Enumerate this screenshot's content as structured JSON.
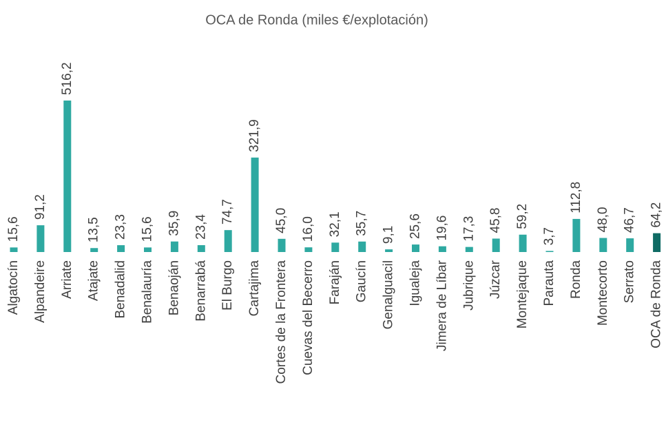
{
  "chart_data": {
    "type": "bar",
    "title": "OCA de Ronda (miles €/explotación)",
    "categories": [
      "Algatocín",
      "Alpandeire",
      "Arriate",
      "Atajate",
      "Benadalid",
      "Benalauría",
      "Benaoján",
      "Benarrabá",
      "El Burgo",
      "Cartajima",
      "Cortes de la Frontera",
      "Cuevas del Becerro",
      "Faraján",
      "Gaucín",
      "Genalguacil",
      "Igualeja",
      "Jimera de Líbar",
      "Jubrique",
      "Júzcar",
      "Montejaque",
      "Parauta",
      "Ronda",
      "Montecorto",
      "Serrato",
      "OCA de Ronda"
    ],
    "values": [
      15.6,
      91.2,
      516.2,
      13.5,
      23.3,
      15.6,
      35.9,
      23.4,
      74.7,
      321.9,
      45.0,
      16.0,
      32.1,
      35.7,
      9.1,
      25.6,
      19.6,
      17.3,
      45.8,
      59.2,
      3.7,
      112.8,
      48.0,
      46.7,
      64.2
    ],
    "value_labels": [
      "15,6",
      "91,2",
      "516,2",
      "13,5",
      "23,3",
      "15,6",
      "35,9",
      "23,4",
      "74,7",
      "321,9",
      "45,0",
      "16,0",
      "32,1",
      "35,7",
      "9,1",
      "25,6",
      "19,6",
      "17,3",
      "45,8",
      "59,2",
      "3,7",
      "112,8",
      "48,0",
      "46,7",
      "64,2"
    ],
    "colors": [
      "#2ea9a1",
      "#2ea9a1",
      "#2ea9a1",
      "#2ea9a1",
      "#2ea9a1",
      "#2ea9a1",
      "#2ea9a1",
      "#2ea9a1",
      "#2ea9a1",
      "#2ea9a1",
      "#2ea9a1",
      "#2ea9a1",
      "#2ea9a1",
      "#2ea9a1",
      "#2ea9a1",
      "#2ea9a1",
      "#2ea9a1",
      "#2ea9a1",
      "#2ea9a1",
      "#2ea9a1",
      "#2ea9a1",
      "#2ea9a1",
      "#2ea9a1",
      "#2ea9a1",
      "#0f6b64"
    ]
  }
}
